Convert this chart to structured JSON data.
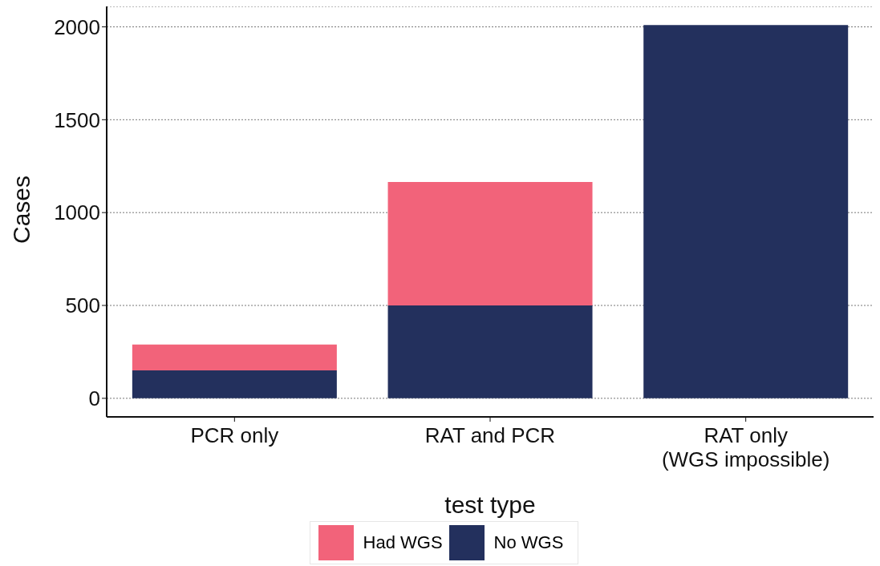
{
  "chart_data": {
    "type": "bar",
    "stacked": true,
    "xlabel": "test type",
    "ylabel": "Cases",
    "categories": [
      "PCR only",
      "RAT and PCR",
      "RAT only\n(WGS impossible)"
    ],
    "series": [
      {
        "name": "No WGS",
        "color": "#23305d",
        "values": [
          150,
          500,
          2010
        ]
      },
      {
        "name": "Had WGS",
        "color": "#f2637a",
        "values": [
          140,
          665,
          0
        ]
      }
    ],
    "ylim": [
      -100,
      2110
    ],
    "yticks": [
      0,
      500,
      1000,
      1500,
      2000
    ],
    "grid": "y",
    "legend": "bottom"
  }
}
